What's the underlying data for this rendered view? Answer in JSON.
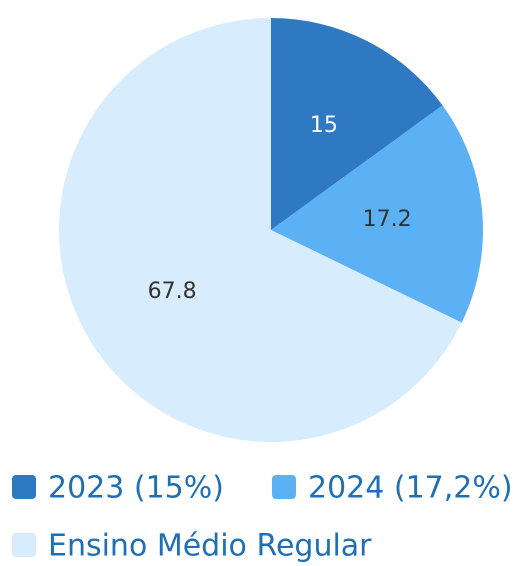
{
  "chart_data": {
    "type": "pie",
    "categories": [
      "2023 (15%)",
      "2024 (17,2%)",
      "Ensino Médio Regular"
    ],
    "values": [
      15,
      17.2,
      67.8
    ],
    "colors": [
      "#2f78c2",
      "#5cb1f5",
      "#d7edfd"
    ],
    "label_colors": [
      "#ffffff",
      "#333333",
      "#333333"
    ],
    "legend": "bottom"
  }
}
